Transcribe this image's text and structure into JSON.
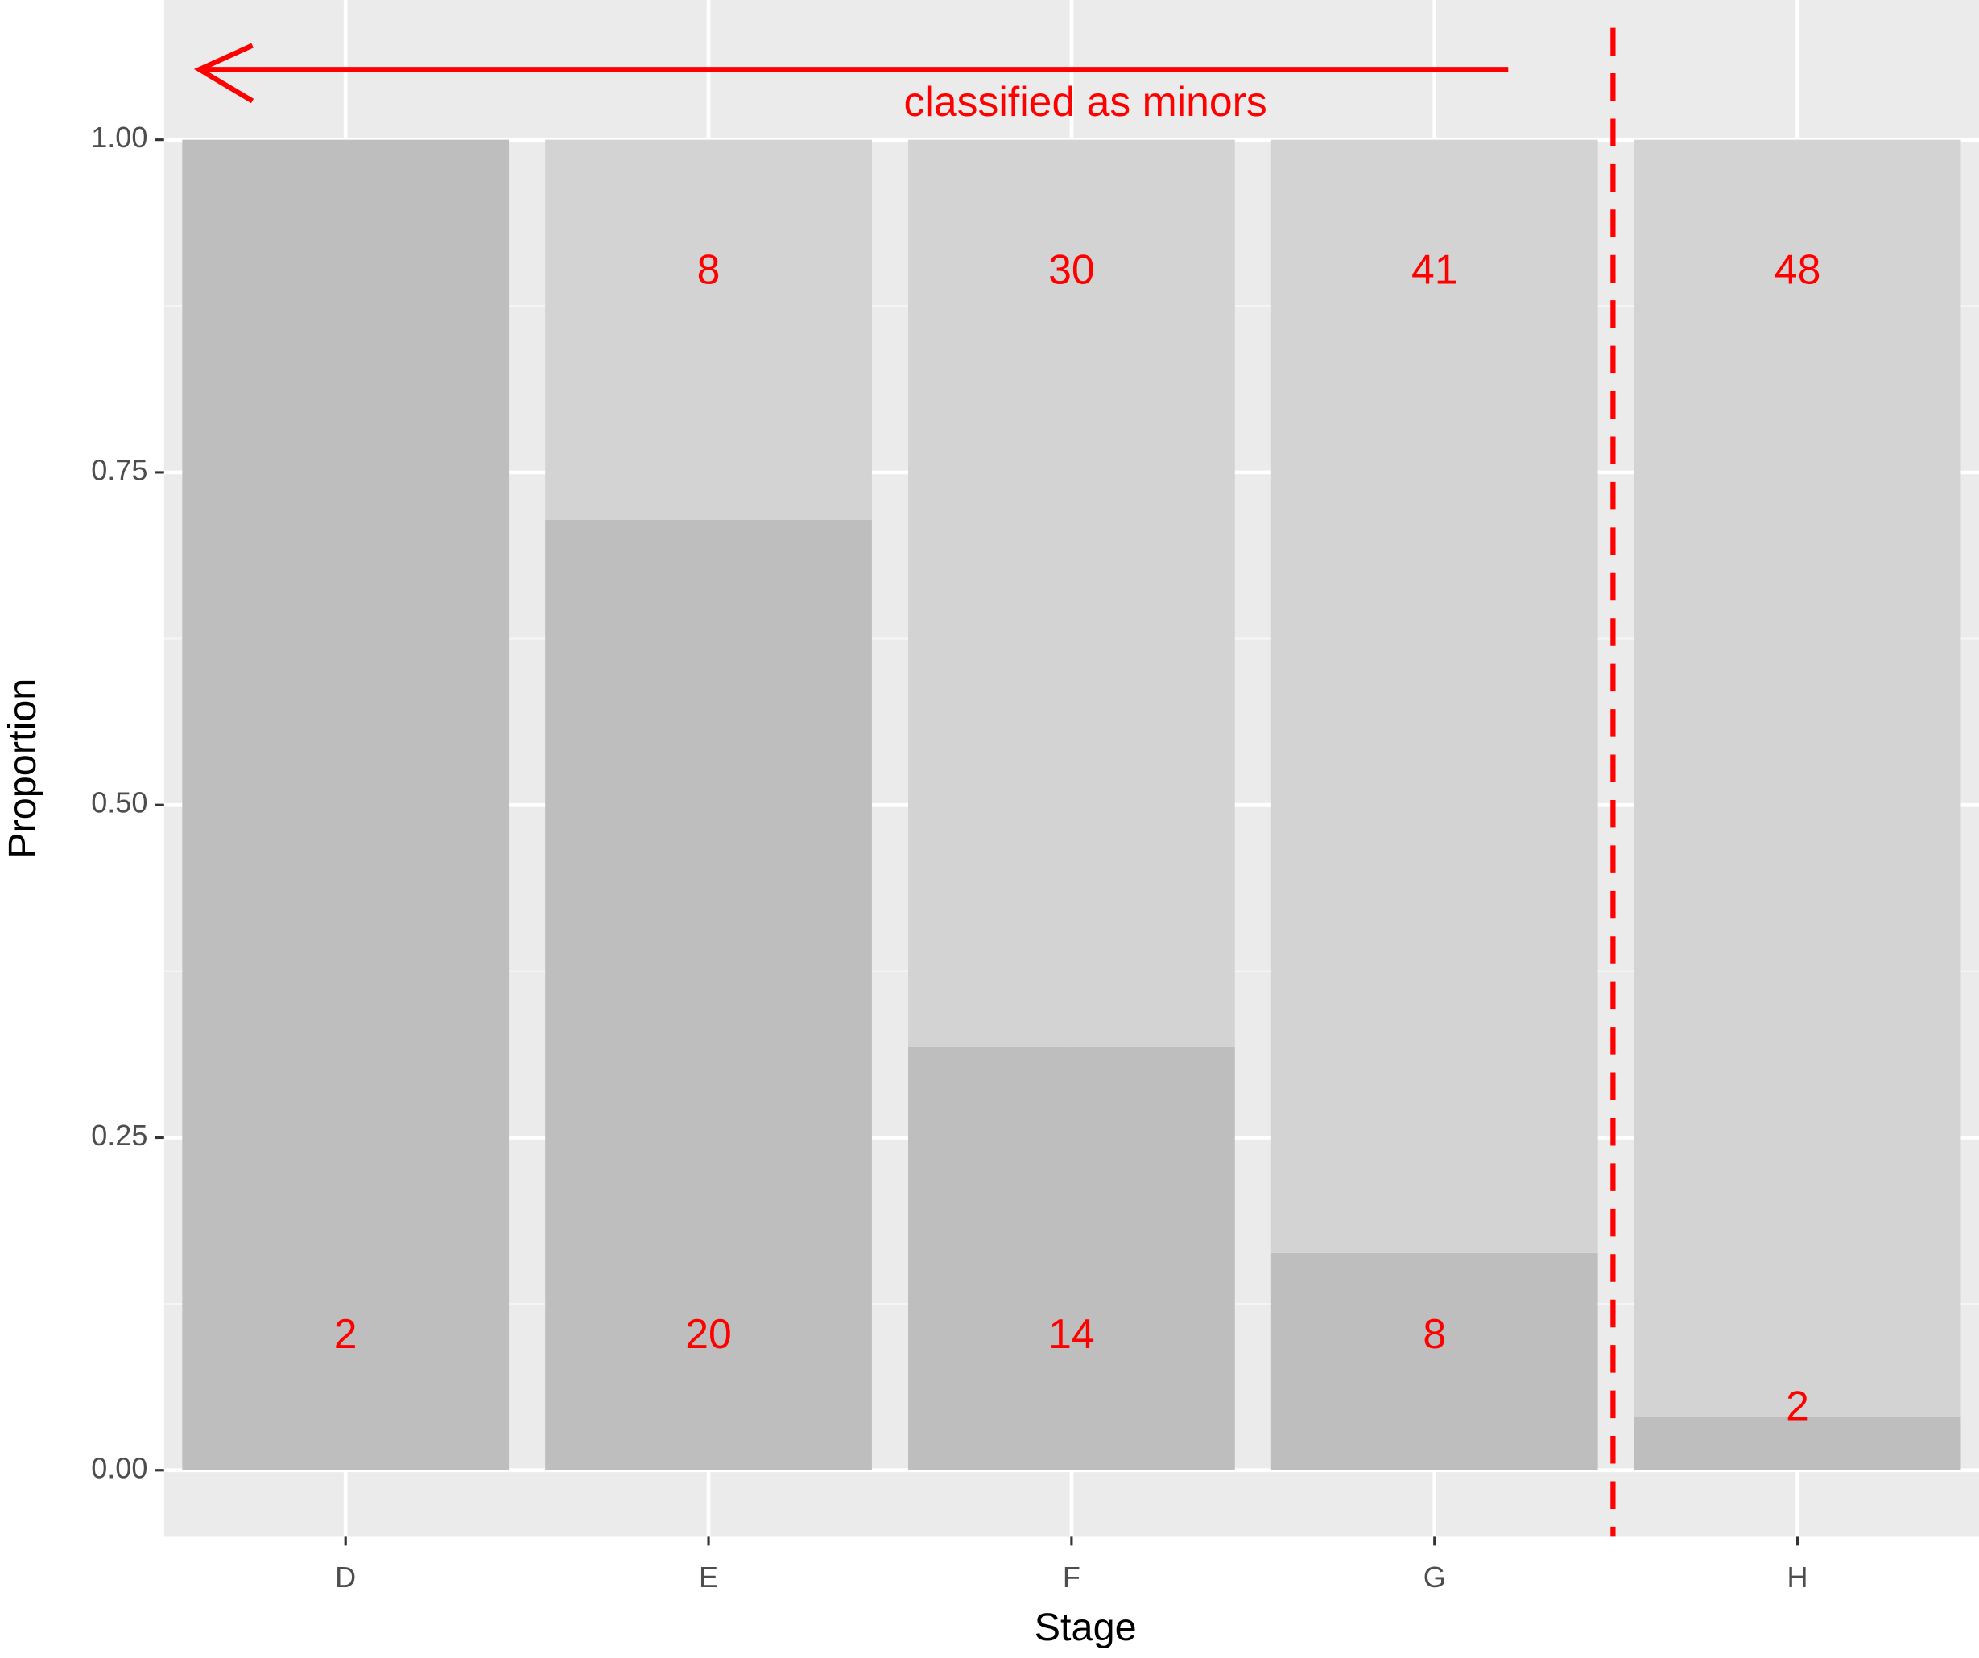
{
  "chart_data": {
    "type": "bar",
    "stacking": "percent",
    "x_label": "Stage",
    "y_label": "Proportion",
    "categories": [
      "D",
      "E",
      "F",
      "G",
      "H"
    ],
    "series": [
      {
        "color": "#bebebe",
        "values": [
          2,
          20,
          14,
          8,
          2
        ]
      },
      {
        "color": "#d3d3d3",
        "values": [
          null,
          8,
          30,
          41,
          48
        ]
      }
    ],
    "ylim": [
      -0.05,
      1.105
    ],
    "yticks": [
      {
        "value": 0,
        "label": "0.00"
      },
      {
        "value": 0.25,
        "label": "0.25"
      },
      {
        "value": 0.5,
        "label": "0.50"
      },
      {
        "value": 0.75,
        "label": "0.75"
      },
      {
        "value": 1,
        "label": "1.00"
      }
    ],
    "grid": true,
    "annotation": "classified as minors"
  }
}
